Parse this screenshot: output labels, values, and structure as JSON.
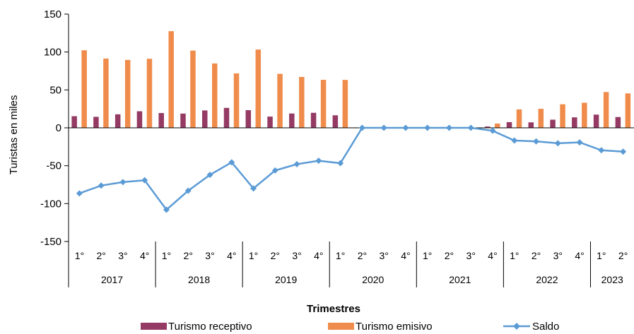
{
  "chart_data": {
    "type": "bar",
    "title": "",
    "xlabel": "Trimestres",
    "ylabel": "Turistas en miles",
    "ylim": [
      -150,
      150
    ],
    "y_ticks": [
      150,
      100,
      50,
      0,
      -50,
      -100,
      -150
    ],
    "y_tick_labels": [
      "150",
      "100",
      "50",
      "0",
      "-50",
      "-100",
      "-150"
    ],
    "grid": false,
    "legend_position": "bottom",
    "quarter_labels": [
      "1°",
      "2°",
      "3°",
      "4°",
      "1°",
      "2°",
      "3°",
      "4°",
      "1°",
      "2°",
      "3°",
      "4°",
      "1°",
      "2°",
      "3°",
      "4°",
      "1°",
      "2°",
      "3°",
      "4°",
      "1°",
      "2°",
      "3°",
      "4°",
      "1°",
      "2°"
    ],
    "years": [
      {
        "label": "2017",
        "count": 4
      },
      {
        "label": "2018",
        "count": 4
      },
      {
        "label": "2019",
        "count": 4
      },
      {
        "label": "2020",
        "count": 4
      },
      {
        "label": "2021",
        "count": 4
      },
      {
        "label": "2022",
        "count": 4
      },
      {
        "label": "2023",
        "count": 2
      }
    ],
    "series": [
      {
        "name": "Turismo receptivo",
        "kind": "bar",
        "color": "#953a63",
        "values": [
          15.3,
          14.5,
          17.8,
          21.8,
          19.5,
          18.8,
          22.9,
          26.3,
          23.3,
          14.8,
          18.9,
          19.8,
          16.5,
          0,
          0,
          0,
          0,
          0,
          0,
          1.7,
          7.5,
          7.2,
          10.7,
          13.8,
          17.4,
          14.2
        ]
      },
      {
        "name": "Turismo emisivo",
        "kind": "bar",
        "color": "#f08c4b",
        "values": [
          102.3,
          91.4,
          89.6,
          91.1,
          127.5,
          101.9,
          84.9,
          71.8,
          103.3,
          71.2,
          67.1,
          63.3,
          63.2,
          0,
          0,
          0,
          0,
          0,
          0,
          5.6,
          24.3,
          25.1,
          31.1,
          33.1,
          47.2,
          45.4
        ]
      },
      {
        "name": "Saldo",
        "kind": "line",
        "color": "#5b9bd5",
        "values": [
          -86.5,
          -76.2,
          -71.6,
          -69.2,
          -108.1,
          -83.0,
          -62.1,
          -45.5,
          -80.0,
          -56.3,
          -48.0,
          -43.4,
          -46.7,
          0,
          0,
          0,
          0,
          0,
          0,
          -3.9,
          -16.8,
          -17.9,
          -20.4,
          -19.2,
          -29.6,
          -31.4
        ]
      }
    ]
  }
}
